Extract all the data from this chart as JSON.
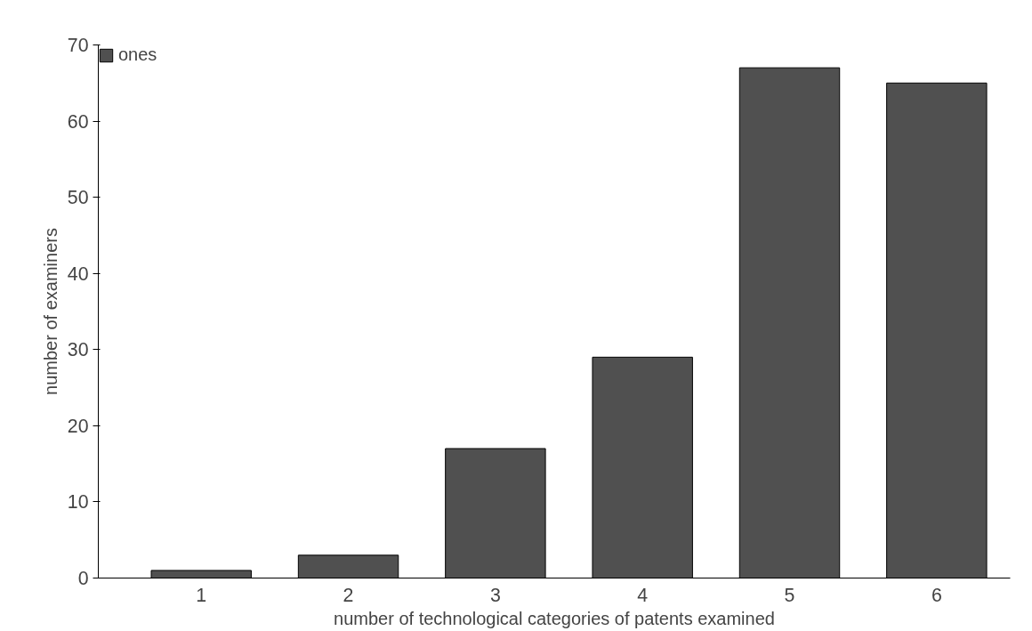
{
  "chart_data": {
    "type": "bar",
    "xlabel": "number of technological categories of patents examined",
    "ylabel": "number of examiners",
    "categories": [
      "1",
      "2",
      "3",
      "4",
      "5",
      "6"
    ],
    "series": [
      {
        "name": "ones",
        "color": "#505050",
        "values": [
          1,
          3,
          17,
          29,
          67,
          65
        ]
      }
    ],
    "ylim": [
      0,
      70
    ],
    "yticks": [
      0,
      10,
      20,
      30,
      40,
      50,
      60,
      70
    ],
    "grid": false,
    "legend": "top left"
  }
}
